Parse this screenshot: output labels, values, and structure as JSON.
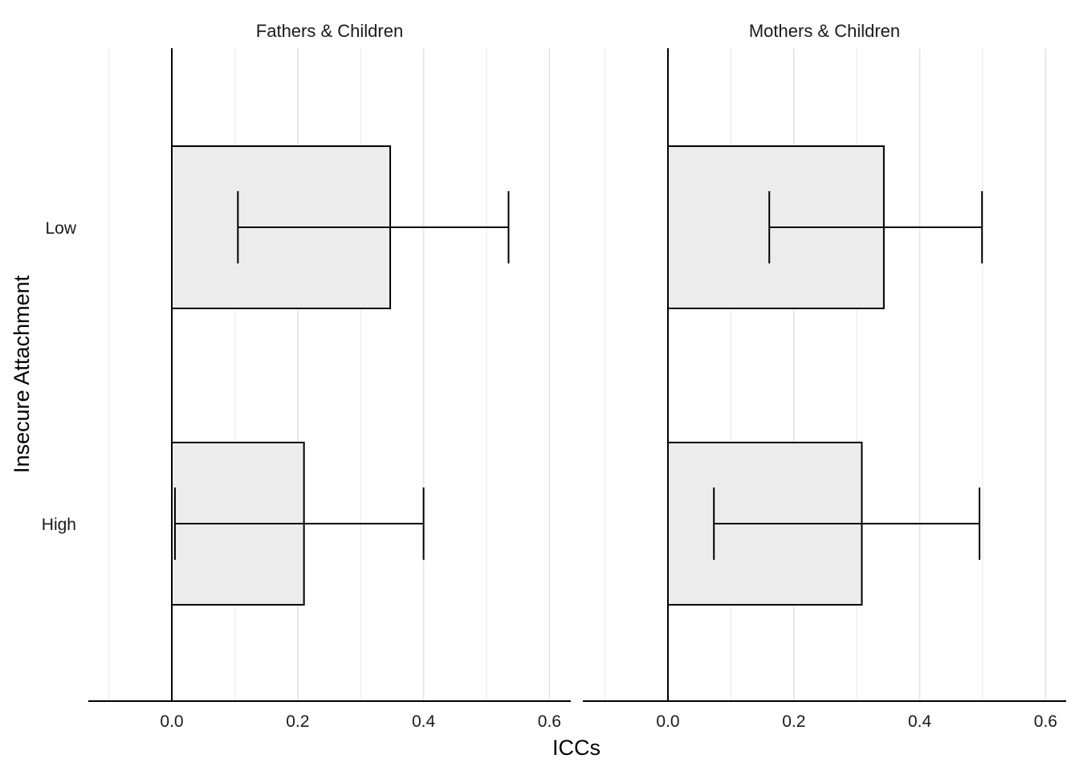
{
  "chart_data": {
    "type": "bar",
    "orientation": "horizontal",
    "xlabel": "ICCs",
    "ylabel": "Insecure Attachment",
    "xlim": [
      -0.135,
      0.635
    ],
    "xticks": [
      "0.0",
      "0.2",
      "0.4",
      "0.6"
    ],
    "xtick_values": [
      0.0,
      0.2,
      0.4,
      0.6
    ],
    "minor_gridlines": [
      -0.1,
      0.1,
      0.3,
      0.5
    ],
    "categories": [
      "Low",
      "High"
    ],
    "grid": "vertical gridlines only",
    "bar_fill": "#ececec",
    "bar_stroke": "#000000",
    "panels": [
      {
        "title": "Fathers & Children",
        "values": [
          0.347,
          0.21
        ],
        "ci_low": [
          0.105,
          0.005
        ],
        "ci_high": [
          0.535,
          0.4
        ]
      },
      {
        "title": "Mothers & Children",
        "values": [
          0.343,
          0.308
        ],
        "ci_low": [
          0.161,
          0.073
        ],
        "ci_high": [
          0.499,
          0.495
        ]
      }
    ]
  }
}
